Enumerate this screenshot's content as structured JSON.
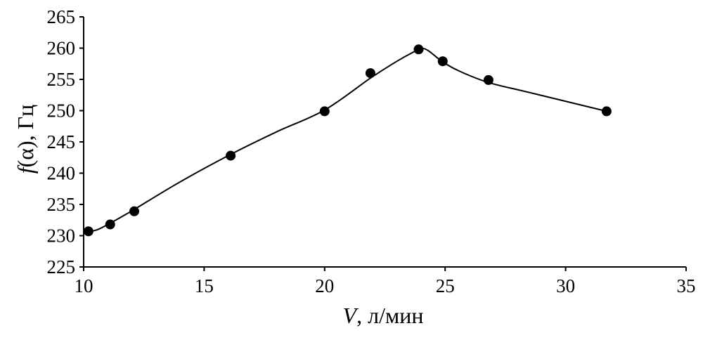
{
  "chart_data": {
    "type": "line",
    "title": "",
    "xlabel": "V, л/мин",
    "xlabel_var": "V",
    "xlabel_rest": ", л/мин",
    "ylabel": "f(α), Гц",
    "ylabel_var": "f",
    "ylabel_rest": "(α), Гц",
    "xlim": [
      10,
      35
    ],
    "ylim": [
      225,
      265
    ],
    "xticks": [
      "10",
      "15",
      "20",
      "25",
      "30",
      "35"
    ],
    "yticks": [
      "225",
      "230",
      "235",
      "240",
      "245",
      "250",
      "255",
      "260",
      "265"
    ],
    "grid": false,
    "legend": "none",
    "series": [
      {
        "x": [
          10.2,
          11.1,
          12.1,
          16.1,
          20.0,
          21.9,
          23.9,
          24.9,
          26.8,
          31.7
        ],
        "y": [
          230.7,
          231.8,
          233.9,
          242.8,
          249.9,
          256.0,
          259.8,
          257.9,
          254.9,
          249.9
        ],
        "marker": "circle",
        "color": "#000000"
      }
    ],
    "curve": {
      "x": [
        10.2,
        10.6,
        11.1,
        11.7,
        12.1,
        14.0,
        16.1,
        18.0,
        20.0,
        21.9,
        23.0,
        23.6,
        24.0,
        24.3,
        24.9,
        25.6,
        26.8,
        28.5,
        31.7
      ],
      "y": [
        230.6,
        231.0,
        232.0,
        233.3,
        234.2,
        238.6,
        243.0,
        246.6,
        250.1,
        255.2,
        257.9,
        259.2,
        259.9,
        259.6,
        257.8,
        256.3,
        254.5,
        252.9,
        249.9
      ]
    }
  }
}
